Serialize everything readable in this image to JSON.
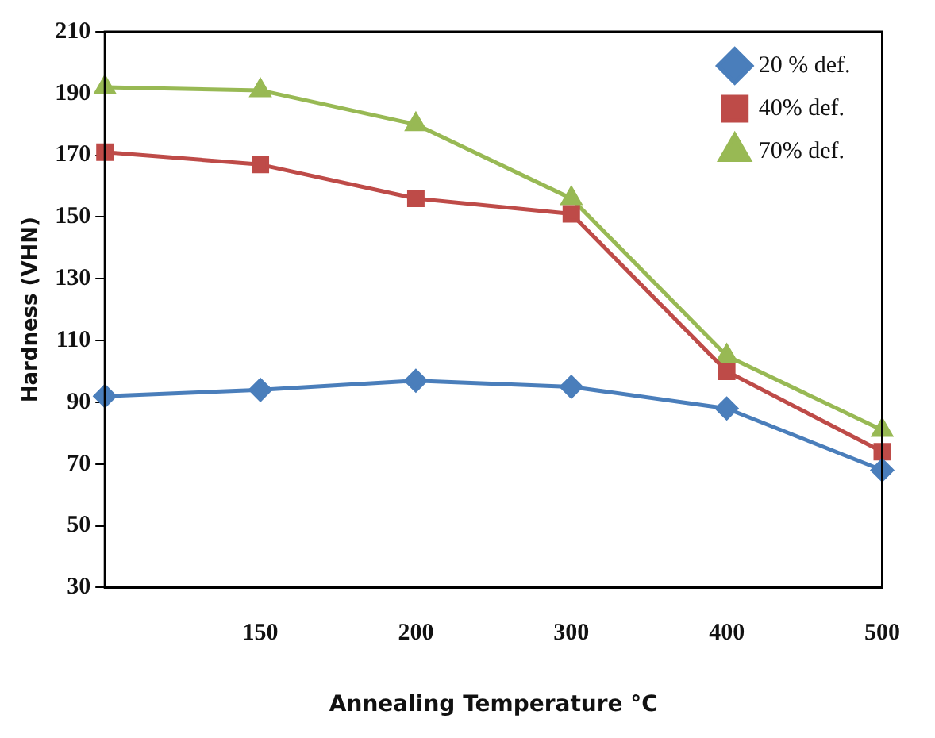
{
  "chart_data": {
    "type": "line",
    "xlabel": "Annealing Temperature °C",
    "ylabel": "Hardness (VHN)",
    "categories": [
      null,
      "150",
      "200",
      "300",
      "400",
      "500"
    ],
    "series": [
      {
        "name": "20 % def.",
        "color": "#4a7ebb",
        "marker": "diamond",
        "values": [
          92,
          94,
          97,
          95,
          88,
          68
        ]
      },
      {
        "name": "40% def.",
        "color": "#be4b48",
        "marker": "square",
        "values": [
          171,
          167,
          156,
          151,
          100,
          74
        ]
      },
      {
        "name": "70% def.",
        "color": "#98b954",
        "marker": "triangle",
        "values": [
          192,
          191,
          180,
          156,
          105,
          81
        ]
      }
    ],
    "ylim": [
      30,
      210
    ],
    "yticks": [
      30,
      50,
      70,
      90,
      110,
      130,
      150,
      170,
      190,
      210
    ],
    "grid": false,
    "legend": "top right",
    "line_style": "solid"
  }
}
